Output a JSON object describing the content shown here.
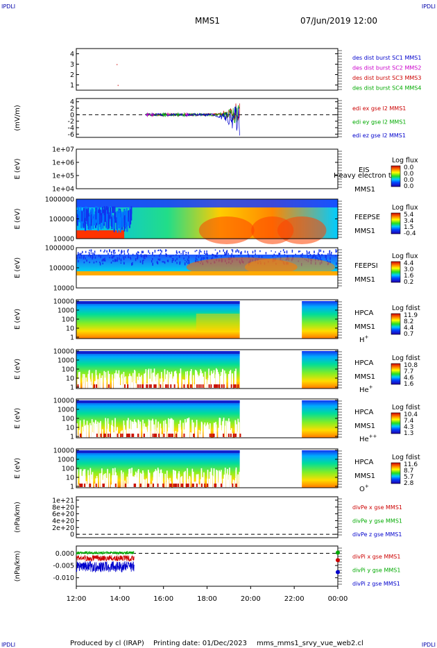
{
  "header": {
    "corner_left": "IPDLI",
    "corner_right": "IPDLI",
    "mission": "MMS1",
    "datetime": "07/Jun/2019 12:00"
  },
  "footer": {
    "corner_left": "IPDLI",
    "corner_right": "IPDLI",
    "produced_by": "Produced by cl (IRAP)",
    "printing_date": "Printing date: 01/Dec/2023",
    "script": "mms_mms1_srvy_vue_web2.cl"
  },
  "chart_data": [
    {
      "type": "scatter",
      "panel": "des-dist",
      "ylim": [
        0.5,
        4.5
      ],
      "yticks": [
        "4",
        "3",
        "2",
        "1"
      ],
      "ylabel": "",
      "legend": [
        {
          "text": "des dist burst SC1 MMS1",
          "color": "#0000cc"
        },
        {
          "text": "des dist burst SC2 MMS2",
          "color": "#cc00cc"
        },
        {
          "text": "des dist burst SC3 MMS3",
          "color": "#cc0000"
        },
        {
          "text": "des dist burst SC4 MMS4",
          "color": "#00aa00"
        }
      ],
      "points": [
        {
          "t": 13.85,
          "y": 3
        },
        {
          "t": 13.9,
          "y": 1
        }
      ]
    },
    {
      "type": "line",
      "panel": "edi",
      "ylabel": "(mV/m)",
      "ylim": [
        -7,
        5
      ],
      "yticks": [
        "4",
        "2",
        "0",
        "-2",
        "-4",
        "-6"
      ],
      "legend": [
        {
          "text": "edi ex gse l2 MMS1",
          "color": "#cc0000"
        },
        {
          "text": "edi ey gse l2 MMS1",
          "color": "#00aa00"
        },
        {
          "text": "edi ez gse l2 MMS1",
          "color": "#0000cc"
        }
      ],
      "data_range": [
        15.2,
        19.5
      ]
    },
    {
      "type": "heatmap",
      "panel": "eis",
      "ylabel": "E (eV)",
      "yticks": [
        "1e+07",
        "1e+06",
        "1e+05",
        "1e+04"
      ],
      "label": [
        "EIS",
        "MMS1"
      ],
      "overlay_text": "Heavy electron to",
      "colorbar": {
        "title": "Log flux",
        "ticks": [
          "0.0",
          "0.0",
          "0.0",
          "0.0"
        ]
      }
    },
    {
      "type": "heatmap",
      "panel": "feepse",
      "ylabel": "E (eV)",
      "yticks": [
        "1000000",
        "100000",
        "10000"
      ],
      "label": [
        "FEEPSE",
        "MMS1"
      ],
      "colorbar": {
        "title": "Log flux",
        "ticks": [
          "5.4",
          "3.4",
          "1.5",
          "-0.4"
        ]
      }
    },
    {
      "type": "heatmap",
      "panel": "feepsi",
      "ylabel": "E (eV)",
      "yticks": [
        "1000000",
        "100000",
        "10000"
      ],
      "label": [
        "FEEPSI",
        "MMS1"
      ],
      "colorbar": {
        "title": "Log flux",
        "ticks": [
          "4.4",
          "3.0",
          "1.6",
          "0.2"
        ]
      }
    },
    {
      "type": "heatmap",
      "panel": "hpca-h",
      "ylabel": "E (eV)",
      "yticks": [
        "10000",
        "1000",
        "100",
        "10",
        "1"
      ],
      "label": [
        "HPCA",
        "MMS1"
      ],
      "species": "H",
      "species_sup": "+",
      "gap": [
        19.5,
        22.35
      ],
      "colorbar": {
        "title": "Log fdist",
        "ticks": [
          "11.9",
          "8.2",
          "4.4",
          "0.7"
        ]
      }
    },
    {
      "type": "heatmap",
      "panel": "hpca-he",
      "ylabel": "E (eV)",
      "yticks": [
        "10000",
        "1000",
        "100",
        "10",
        "1"
      ],
      "label": [
        "HPCA",
        "MMS1"
      ],
      "species": "He",
      "species_sup": "+",
      "gap": [
        19.5,
        22.35
      ],
      "colorbar": {
        "title": "Log fdist",
        "ticks": [
          "10.8",
          "7.7",
          "4.6",
          "1.6"
        ]
      }
    },
    {
      "type": "heatmap",
      "panel": "hpca-hepp",
      "ylabel": "E (eV)",
      "yticks": [
        "10000",
        "1000",
        "100",
        "10",
        "1"
      ],
      "label": [
        "HPCA",
        "MMS1"
      ],
      "species": "He",
      "species_sup": "++",
      "gap": [
        19.5,
        22.35
      ],
      "colorbar": {
        "title": "Log fdist",
        "ticks": [
          "10.4",
          "7.4",
          "4.3",
          "1.3"
        ]
      }
    },
    {
      "type": "heatmap",
      "panel": "hpca-o",
      "ylabel": "E (eV)",
      "yticks": [
        "10000",
        "1000",
        "100",
        "10",
        "1"
      ],
      "label": [
        "HPCA",
        "MMS1"
      ],
      "species": "O",
      "species_sup": "+",
      "gap": [
        19.5,
        22.35
      ],
      "colorbar": {
        "title": "Log fdist",
        "ticks": [
          "11.6",
          "8.7",
          "5.7",
          "2.8"
        ]
      }
    },
    {
      "type": "line",
      "panel": "divpe",
      "ylabel": "(nPa/km)",
      "ylim": [
        -1e+20,
        1.1e+21
      ],
      "yticks": [
        "1e+21",
        "8e+20",
        "6e+20",
        "4e+20",
        "2e+20",
        "0"
      ],
      "legend": [
        {
          "text": "divPe x gse MMS1",
          "color": "#cc0000"
        },
        {
          "text": "divPe y gse MMS1",
          "color": "#00aa00"
        },
        {
          "text": "divPe z gse MMS1",
          "color": "#0000cc"
        }
      ]
    },
    {
      "type": "line",
      "panel": "divpi",
      "ylabel": "(nPa/km)",
      "ylim": [
        -0.0135,
        0.003
      ],
      "yticks": [
        "0.000",
        "-0.005",
        "-0.010"
      ],
      "legend": [
        {
          "text": "divPi x gse MMS1",
          "color": "#cc0000"
        },
        {
          "text": "divPi y gse MMS1",
          "color": "#00aa00"
        },
        {
          "text": "divPi z gse MMS1",
          "color": "#0000cc"
        }
      ],
      "series": [
        {
          "name": "divPi x gse MMS1",
          "color": "#cc0000",
          "mean": -0.002,
          "spread": 0.0012
        },
        {
          "name": "divPi y gse MMS1",
          "color": "#00aa00",
          "mean": 0.0002,
          "spread": 0.0006
        },
        {
          "name": "divPi z gse MMS1",
          "color": "#0000cc",
          "mean": -0.0055,
          "spread": 0.0022
        }
      ],
      "data_range": [
        12.0,
        14.65
      ]
    }
  ],
  "x_axis": {
    "range_hours": [
      12,
      24
    ],
    "ticks": [
      {
        "t": 12,
        "label": "12:00"
      },
      {
        "t": 14,
        "label": "14:00"
      },
      {
        "t": 16,
        "label": "16:00"
      },
      {
        "t": 18,
        "label": "18:00"
      },
      {
        "t": 20,
        "label": "20:00"
      },
      {
        "t": 22,
        "label": "22:00"
      },
      {
        "t": 24,
        "label": "00:00"
      }
    ]
  }
}
